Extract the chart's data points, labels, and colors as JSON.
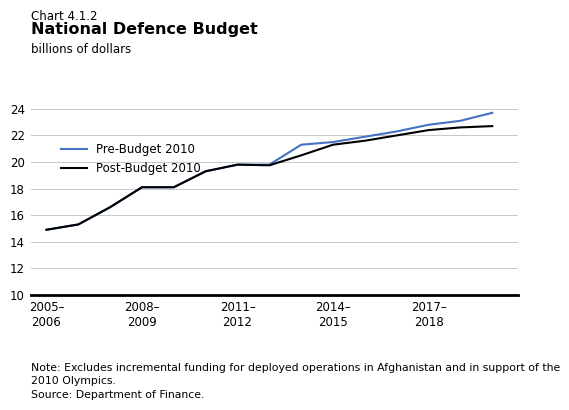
{
  "chart_label": "Chart 4.1.2",
  "title": "National Defence Budget",
  "ylabel": "billions of dollars",
  "ylim": [
    10,
    24.5
  ],
  "yticks": [
    10,
    12,
    14,
    16,
    18,
    20,
    22,
    24
  ],
  "note": "Note: Excludes incremental funding for deployed operations in Afghanistan and in support of the\n2010 Olympics.",
  "source": "Source: Department of Finance.",
  "pre_budget": {
    "label": "Pre-Budget 2010",
    "color": "#4472C4",
    "x": [
      2005,
      2006,
      2007,
      2008,
      2009,
      2010,
      2011,
      2012,
      2013,
      2014,
      2015,
      2016,
      2017,
      2018,
      2019
    ],
    "y": [
      14.9,
      15.3,
      16.6,
      18.1,
      18.1,
      19.3,
      19.8,
      19.8,
      21.3,
      21.5,
      21.9,
      22.3,
      22.8,
      23.1,
      23.7
    ]
  },
  "post_budget": {
    "label": "Post-Budget 2010",
    "color": "#000000",
    "x": [
      2005,
      2006,
      2007,
      2008,
      2009,
      2010,
      2011,
      2012,
      2013,
      2014,
      2015,
      2016,
      2017,
      2018,
      2019
    ],
    "y": [
      14.9,
      15.3,
      16.6,
      18.1,
      18.1,
      19.3,
      19.8,
      19.75,
      20.5,
      21.3,
      21.6,
      22.0,
      22.4,
      22.6,
      22.7
    ]
  },
  "xtick_positions": [
    2005,
    2008,
    2011,
    2014,
    2017
  ],
  "xtick_labels": [
    "2005–\n2006",
    "2008–\n2009",
    "2011–\n2012",
    "2014–\n2015",
    "2017–\n2018"
  ],
  "background_color": "#ffffff",
  "grid_color": "#c8c8c8"
}
